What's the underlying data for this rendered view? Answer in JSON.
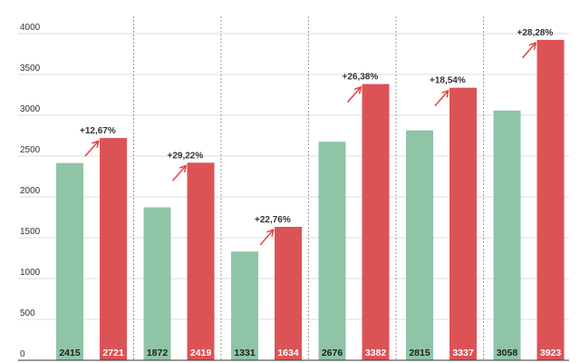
{
  "colors": {
    "series_a": "#8fc4a6",
    "series_b": "#dc5356",
    "arrow": "#e0423f",
    "label_on_green": "#1f1f1f",
    "label_on_red": "#ffffff"
  },
  "chart_data": {
    "type": "bar",
    "title": "",
    "xlabel": "",
    "ylabel": "",
    "ylim": [
      0,
      4000
    ],
    "yticks": [
      "0",
      "500",
      "1000",
      "1500",
      "2000",
      "2500",
      "3000",
      "3500",
      "4000"
    ],
    "categories": [
      "",
      "",
      "",
      "",
      "",
      ""
    ],
    "series": [
      {
        "values": [
          2415,
          1872,
          1331,
          2676,
          2815,
          3058
        ]
      },
      {
        "values": [
          2721,
          2419,
          1634,
          3382,
          3337,
          3923
        ]
      }
    ],
    "value_labels": {
      "a": [
        "2415",
        "1872",
        "1331",
        "2676",
        "2815",
        "3058"
      ],
      "b": [
        "2721",
        "2419",
        "1634",
        "3382",
        "3337",
        "3923"
      ]
    },
    "change_labels": [
      "+12,67%",
      "+29,22%",
      "+22,76%",
      "+26,38%",
      "+18,54%",
      "+28,28%"
    ],
    "gridlines": true
  }
}
